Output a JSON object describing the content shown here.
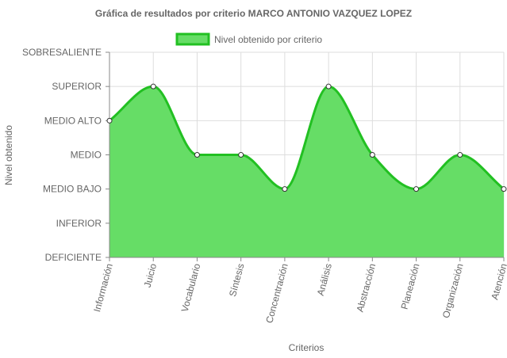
{
  "chart_data": {
    "type": "area",
    "title": "Gráfica de resultados por criterio MARCO ANTONIO VAZQUEZ LOPEZ",
    "xlabel": "Criterios",
    "ylabel": "Nivel obtenido",
    "y_levels": [
      "DEFICIENTE",
      "INFERIOR",
      "MEDIO BAJO",
      "MEDIO",
      "MEDIO ALTO",
      "SUPERIOR",
      "SOBRESALIENTE"
    ],
    "ylim": [
      0,
      6
    ],
    "categories": [
      "Información",
      "Juicio",
      "Vocabulario",
      "Síntesis",
      "Concentración",
      "Análisis",
      "Abstracción",
      "Planeación",
      "Organización",
      "Atención"
    ],
    "series": [
      {
        "name": "Nivel obtenido por criterio",
        "values": [
          4,
          5,
          3,
          3,
          2,
          5,
          3,
          2,
          3,
          2
        ],
        "value_labels": [
          "MEDIO ALTO",
          "SUPERIOR",
          "MEDIO",
          "MEDIO",
          "MEDIO BAJO",
          "SUPERIOR",
          "MEDIO",
          "MEDIO BAJO",
          "MEDIO",
          "MEDIO BAJO"
        ]
      }
    ],
    "legend_position": "top",
    "grid": true,
    "colors": {
      "fill": "#66dd66",
      "line": "#22c022",
      "point_fill": "#ffffff",
      "point_stroke": "#333333",
      "grid": "#dddddd",
      "axis": "#888888"
    }
  }
}
